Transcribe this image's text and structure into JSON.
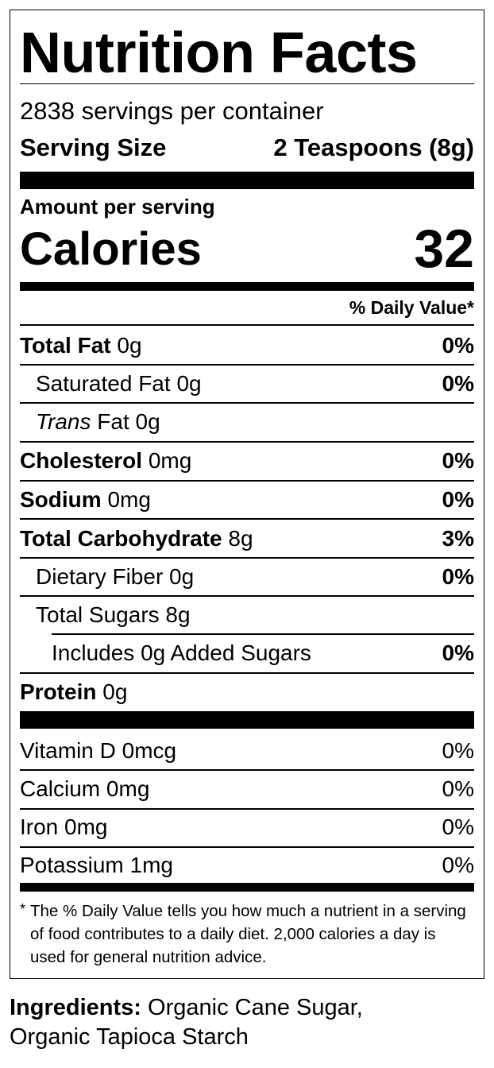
{
  "title": "Nutrition Facts",
  "servings": "2838 servings per container",
  "serving_size": {
    "label": "Serving Size",
    "value": "2 Teaspoons (8g)"
  },
  "amount_per_serving": "Amount per serving",
  "calories": {
    "label": "Calories",
    "value": 32
  },
  "daily_value_header": "% Daily Value*",
  "nutrients": [
    {
      "name": "Total Fat",
      "amount": "0g",
      "dv": "0%"
    },
    {
      "name": "Saturated Fat",
      "amount": "0g",
      "dv": "0%"
    },
    {
      "prefix": "Trans",
      "name": "Fat",
      "amount": "0g"
    },
    {
      "name": "Cholesterol",
      "amount": "0mg",
      "dv": "0%"
    },
    {
      "name": "Sodium",
      "amount": "0mg",
      "dv": "0%"
    },
    {
      "name": "Total Carbohydrate",
      "amount": "8g",
      "dv": "3%"
    },
    {
      "name": "Dietary Fiber",
      "amount": "0g",
      "dv": "0%"
    },
    {
      "name": "Total Sugars",
      "amount": "8g"
    },
    {
      "name": "Includes 0g Added Sugars",
      "dv": "0%"
    },
    {
      "name": "Protein",
      "amount": "0g"
    }
  ],
  "vitamins": [
    {
      "name": "Vitamin D",
      "amount": "0mcg",
      "dv": "0%"
    },
    {
      "name": "Calcium",
      "amount": "0mg",
      "dv": "0%"
    },
    {
      "name": "Iron",
      "amount": "0mg",
      "dv": "0%"
    },
    {
      "name": "Potassium",
      "amount": "1mg",
      "dv": "0%"
    }
  ],
  "footnote": {
    "marker": "*",
    "text": "The % Daily Value tells you how much a nutrient in a serving of food contributes to a daily diet. 2,000 calories a day is used for general nutrition advice."
  },
  "ingredients": {
    "label": "Ingredients:",
    "text": "Organic Cane Sugar, Organic Tapioca Starch"
  }
}
